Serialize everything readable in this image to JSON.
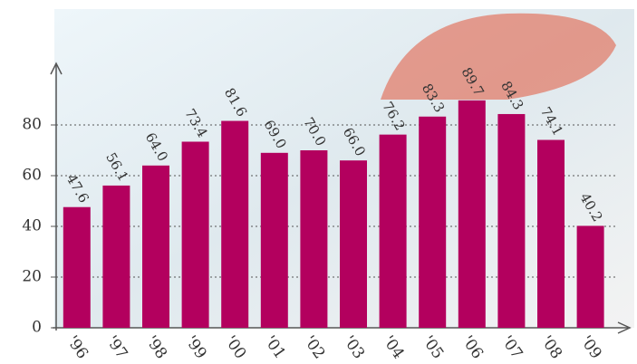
{
  "chart_data": {
    "type": "bar",
    "categories": [
      "'96",
      "'97",
      "'98",
      "'99",
      "'00",
      "'01",
      "'02",
      "'03",
      "'04",
      "'05",
      "'06",
      "'07",
      "'08",
      "'09"
    ],
    "values": [
      47.6,
      56.1,
      64.0,
      73.4,
      81.6,
      69.0,
      70.0,
      66.0,
      76.2,
      83.3,
      89.7,
      84.3,
      74.1,
      40.2
    ],
    "value_labels": [
      "47.6",
      "56.1",
      "64.0",
      "73.4",
      "81.6",
      "69.0",
      "70.0",
      "66.0",
      "76.2",
      "83.3",
      "89.7",
      "84.3",
      "74.1",
      "40.2"
    ],
    "color": "#b3005e",
    "ylim": [
      0,
      100
    ],
    "yticks": [
      0,
      20,
      40,
      60,
      80
    ],
    "grid": true
  }
}
